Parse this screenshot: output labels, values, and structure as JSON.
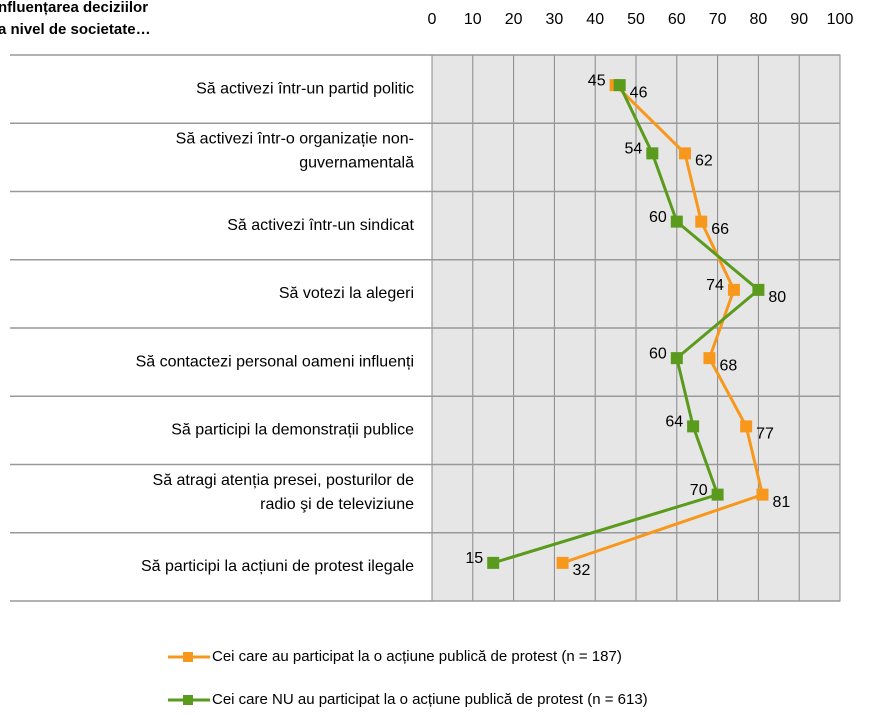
{
  "chart_data": {
    "type": "line",
    "title": [
      "nfluențarea deciziilor",
      "a nivel de societate…"
    ],
    "categories": [
      [
        "Să activezi într-un partid politic"
      ],
      [
        "Să activezi într-o organizație non-",
        "guvernamentală"
      ],
      [
        "Să activezi într-un sindicat"
      ],
      [
        "Să votezi la alegeri"
      ],
      [
        "Să contactezi personal oameni influenți"
      ],
      [
        "Să participi la demonstrații publice"
      ],
      [
        "Să atragi atenția presei, posturilor de",
        "radio şi de televiziune"
      ],
      [
        "Să participi la acțiuni de protest ilegale"
      ]
    ],
    "series": [
      {
        "name": "Cei care au participat la o acțiune publică de protest  (n = 187)",
        "color": "#f7981d",
        "values": [
          45,
          62,
          66,
          74,
          68,
          77,
          81,
          32
        ]
      },
      {
        "name": "Cei care NU au participat la o acțiune publică de protest (n = 613)",
        "color": "#5a9a1c",
        "values": [
          46,
          54,
          60,
          80,
          60,
          64,
          70,
          15
        ]
      }
    ],
    "xlim": [
      0,
      100
    ],
    "xticks": [
      0,
      10,
      20,
      30,
      40,
      50,
      60,
      70,
      80,
      90,
      100
    ],
    "grid": true
  }
}
